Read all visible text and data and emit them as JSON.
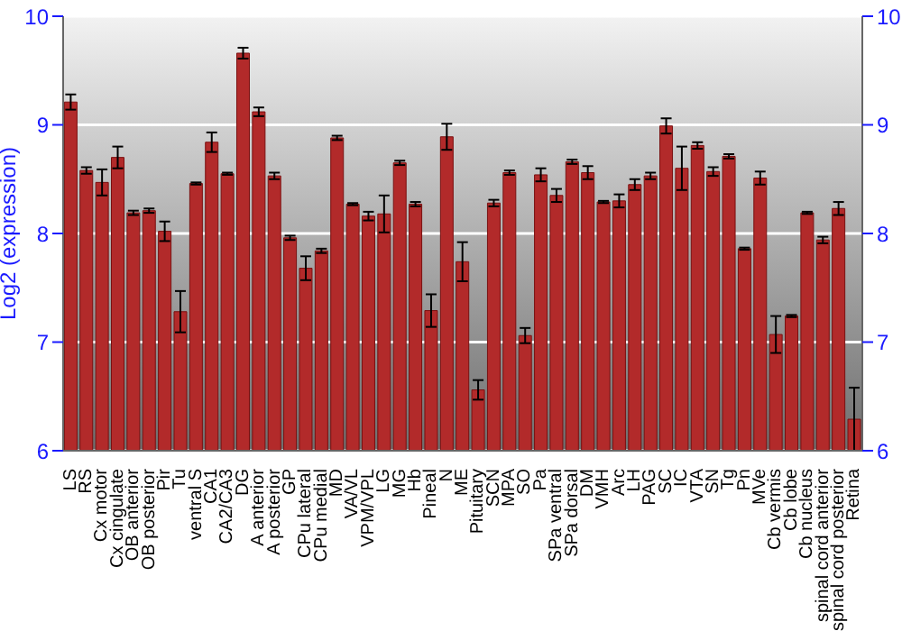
{
  "chart_data": {
    "type": "bar",
    "ylabel": "Log2 (expression)",
    "categories": [
      "LS",
      "RS",
      "Cx motor",
      "Cx cingulate",
      "OB anterior",
      "OB posterior",
      "Pir",
      "Tu",
      "ventral S",
      "CA1",
      "CA2/CA3",
      "DG",
      "A anterior",
      "A posterior",
      "GP",
      "CPu lateral",
      "CPu medial",
      "MD",
      "VA/VL",
      "VPM/VPL",
      "LG",
      "MG",
      "Hb",
      "Pineal",
      "N",
      "ME",
      "Pituitary",
      "SCN",
      "MPA",
      "SO",
      "Pa",
      "SPa ventral",
      "SPa dorsal",
      "DM",
      "VMH",
      "Arc",
      "LH",
      "PAG",
      "SC",
      "IC",
      "VTA",
      "SN",
      "Tg",
      "Pn",
      "MVe",
      "Cb vermis",
      "Cb lobe",
      "Cb nucleus",
      "spinal cord anterior",
      "spinal cord posterior",
      "Retina"
    ],
    "values": [
      9.21,
      8.58,
      8.47,
      8.7,
      8.19,
      8.21,
      8.02,
      7.28,
      8.46,
      8.84,
      8.55,
      9.66,
      9.12,
      8.53,
      7.96,
      7.68,
      7.84,
      8.88,
      8.27,
      8.16,
      8.18,
      8.65,
      8.27,
      7.29,
      8.89,
      7.74,
      6.56,
      8.28,
      8.56,
      7.06,
      8.54,
      8.35,
      8.66,
      8.56,
      8.29,
      8.3,
      8.45,
      8.53,
      8.99,
      8.6,
      8.81,
      8.57,
      8.71,
      7.86,
      8.51,
      7.07,
      7.24,
      8.19,
      7.94,
      8.23,
      6.29
    ],
    "errors": [
      0.07,
      0.03,
      0.12,
      0.1,
      0.02,
      0.02,
      0.09,
      0.19,
      0.01,
      0.09,
      0.01,
      0.05,
      0.04,
      0.03,
      0.02,
      0.11,
      0.02,
      0.02,
      0.01,
      0.04,
      0.17,
      0.02,
      0.02,
      0.15,
      0.12,
      0.18,
      0.09,
      0.03,
      0.02,
      0.07,
      0.06,
      0.06,
      0.02,
      0.06,
      0.01,
      0.06,
      0.05,
      0.03,
      0.07,
      0.2,
      0.03,
      0.04,
      0.02,
      0.01,
      0.06,
      0.17,
      0.01,
      0.01,
      0.03,
      0.06,
      0.29
    ],
    "color": "#b22a2a",
    "ylim": [
      6,
      10
    ],
    "yticks": [
      6,
      7,
      8,
      9,
      10
    ],
    "y2lim": [
      6,
      10
    ],
    "y2ticks": [
      6,
      7,
      8,
      9,
      10
    ],
    "grid": "y"
  }
}
